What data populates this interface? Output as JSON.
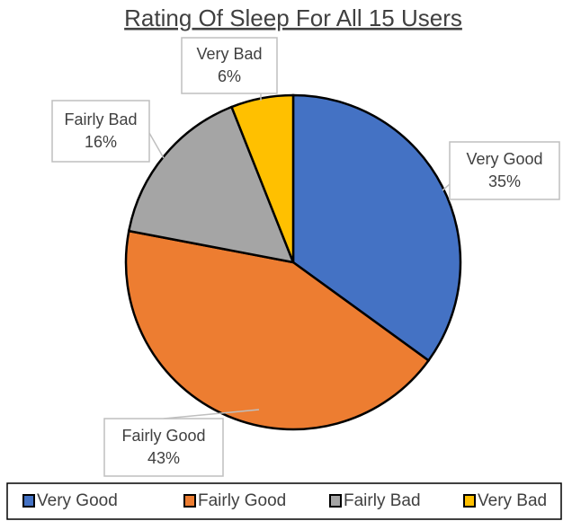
{
  "chart_data": {
    "type": "pie",
    "title": "Rating Of Sleep For All 15 Users",
    "categories": [
      "Very Good",
      "Fairly Good",
      "Fairly Bad",
      "Very Bad"
    ],
    "values": [
      35,
      43,
      16,
      6
    ],
    "value_labels": [
      "35%",
      "43%",
      "16%",
      "6%"
    ],
    "colors": [
      "#4472c4",
      "#ed7d31",
      "#a5a5a5",
      "#ffc000"
    ],
    "legend": "bottom"
  }
}
